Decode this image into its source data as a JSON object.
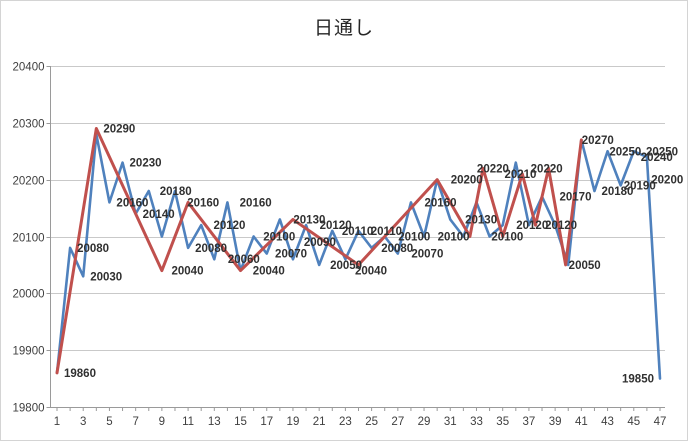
{
  "title": "日通し",
  "chart_data": {
    "type": "line",
    "title": "日通し",
    "x_count": 47,
    "x_tick_labels": [
      "1",
      "3",
      "5",
      "7",
      "9",
      "11",
      "13",
      "15",
      "17",
      "19",
      "21",
      "23",
      "25",
      "27",
      "29",
      "31",
      "33",
      "35",
      "37",
      "39",
      "41",
      "43",
      "45",
      "47"
    ],
    "y_ticks": [
      20400,
      20300,
      20200,
      20100,
      20000,
      19900,
      19800
    ],
    "y_tick_labels": [
      "20400",
      "20300",
      "20200",
      "20100",
      "20000",
      "19900",
      "19800"
    ],
    "ylim": [
      19800,
      20400
    ],
    "grid": true,
    "legend": null,
    "colors": {
      "blue_series": "#4F81BD",
      "red_series": "#C0504D",
      "grid": "#c9c9c9",
      "axis": "#9a9a9a",
      "tick_text": "#3f3f3f",
      "data_label_text": "#303030"
    },
    "series": [
      {
        "name": "series-blue",
        "color": "#4F81BD",
        "values": [
          19860,
          20080,
          20030,
          20280,
          20160,
          20230,
          20140,
          20180,
          20100,
          20180,
          20080,
          20120,
          20060,
          20160,
          20040,
          20100,
          20070,
          20130,
          20060,
          20120,
          20050,
          20110,
          20060,
          20110,
          20080,
          20100,
          20070,
          20160,
          20100,
          20200,
          20130,
          20100,
          20160,
          20100,
          20120,
          20230,
          20120,
          20170,
          20120,
          20050,
          20270,
          20180,
          20250,
          20190,
          20250,
          20240,
          19850
        ]
      },
      {
        "name": "series-red",
        "color": "#C0504D",
        "points": [
          [
            1,
            19860
          ],
          [
            4,
            20290
          ],
          [
            9,
            20040
          ],
          [
            11,
            20160
          ],
          [
            15,
            20040
          ],
          [
            19,
            20130
          ],
          [
            24,
            20050
          ],
          [
            30,
            20200
          ],
          [
            32.5,
            20100
          ],
          [
            33.5,
            20220
          ],
          [
            35,
            20100
          ],
          [
            36.5,
            20210
          ],
          [
            37.5,
            20120
          ],
          [
            38.5,
            20220
          ],
          [
            39.8,
            20050
          ],
          [
            41,
            20270
          ]
        ]
      }
    ],
    "data_labels": [
      {
        "x": 1,
        "v": 19860,
        "t": "19860"
      },
      {
        "x": 2,
        "v": 20080,
        "t": "20080"
      },
      {
        "x": 3,
        "v": 20030,
        "t": "20030"
      },
      {
        "x": 4,
        "v": 20290,
        "t": "20290"
      },
      {
        "x": 5,
        "v": 20160,
        "t": "20160"
      },
      {
        "x": 6,
        "v": 20230,
        "t": "20230"
      },
      {
        "x": 7,
        "v": 20140,
        "t": "20140"
      },
      {
        "x": 8.3,
        "v": 20180,
        "t": "20180"
      },
      {
        "x": 9.2,
        "v": 20040,
        "t": "20040"
      },
      {
        "x": 10.4,
        "v": 20160,
        "t": "20160"
      },
      {
        "x": 11,
        "v": 20080,
        "t": "20080"
      },
      {
        "x": 12.4,
        "v": 20120,
        "t": "20120"
      },
      {
        "x": 13.5,
        "v": 20060,
        "t": "20060"
      },
      {
        "x": 14.4,
        "v": 20160,
        "t": "20160"
      },
      {
        "x": 15.4,
        "v": 20040,
        "t": "20040"
      },
      {
        "x": 16.2,
        "v": 20100,
        "t": "20100"
      },
      {
        "x": 17.1,
        "v": 20070,
        "t": "20070"
      },
      {
        "x": 18.5,
        "v": 20130,
        "t": "20130"
      },
      {
        "x": 19.3,
        "v": 20090,
        "t": "20090"
      },
      {
        "x": 20.5,
        "v": 20120,
        "t": "20120"
      },
      {
        "x": 21.3,
        "v": 20050,
        "t": "20050"
      },
      {
        "x": 22.2,
        "v": 20110,
        "t": "20110"
      },
      {
        "x": 23.2,
        "v": 20040,
        "t": "20040"
      },
      {
        "x": 24.4,
        "v": 20110,
        "t": "20110"
      },
      {
        "x": 25.2,
        "v": 20080,
        "t": "20080"
      },
      {
        "x": 26.5,
        "v": 20100,
        "t": "20100"
      },
      {
        "x": 27.5,
        "v": 20070,
        "t": "20070"
      },
      {
        "x": 28.5,
        "v": 20160,
        "t": "20160"
      },
      {
        "x": 29.5,
        "v": 20100,
        "t": "20100"
      },
      {
        "x": 30.5,
        "v": 20200,
        "t": "20200"
      },
      {
        "x": 31.6,
        "v": 20130,
        "t": "20130"
      },
      {
        "x": 32.5,
        "v": 20220,
        "t": "20220"
      },
      {
        "x": 33.6,
        "v": 20100,
        "t": "20100"
      },
      {
        "x": 34.6,
        "v": 20210,
        "t": "20210"
      },
      {
        "x": 35.5,
        "v": 20120,
        "t": "20120"
      },
      {
        "x": 36.6,
        "v": 20220,
        "t": "20220"
      },
      {
        "x": 37.7,
        "v": 20120,
        "t": "20120"
      },
      {
        "x": 38.8,
        "v": 20170,
        "t": "20170"
      },
      {
        "x": 39.5,
        "v": 20050,
        "t": "20050"
      },
      {
        "x": 40.5,
        "v": 20270,
        "t": "20270"
      },
      {
        "x": 42,
        "v": 20180,
        "t": "20180"
      },
      {
        "x": 42.6,
        "v": 20250,
        "t": "20250"
      },
      {
        "x": 43.7,
        "v": 20190,
        "t": "20190"
      },
      {
        "x": 45,
        "v": 20240,
        "t": "20240"
      },
      {
        "x": 45.4,
        "v": 20250,
        "t": "20250"
      },
      {
        "x": 45.8,
        "v": 20200,
        "t": "20200"
      },
      {
        "x": 47,
        "v": 19850,
        "t": "19850",
        "side": "left"
      }
    ]
  }
}
